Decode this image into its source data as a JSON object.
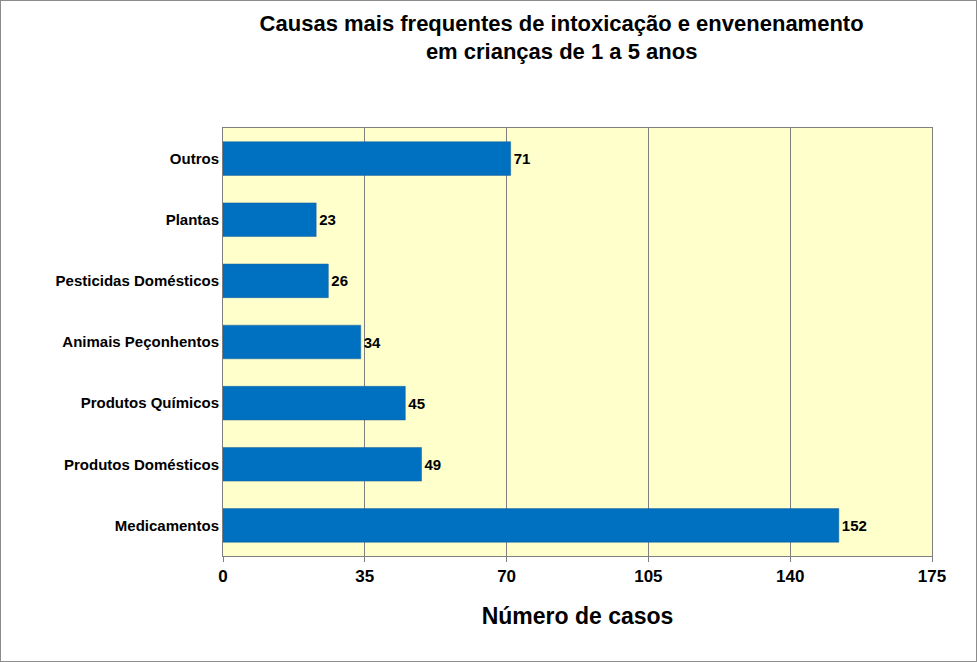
{
  "chart_data": {
    "type": "bar",
    "orientation": "horizontal",
    "title": [
      "Causas mais frequentes de intoxicação e envenenamento",
      "em crianças de 1 a 5 anos"
    ],
    "x_label": "Número de casos",
    "categories": [
      "Outros",
      "Plantas",
      "Pesticidas Domésticos",
      "Animais Peçonhentos",
      "Produtos Químicos",
      "Produtos Domésticos",
      "Medicamentos"
    ],
    "values": [
      71,
      23,
      26,
      34,
      45,
      49,
      152
    ],
    "color": "#0070c0",
    "xlim": [
      0,
      175
    ],
    "xticks": [
      0,
      35,
      70,
      105,
      140,
      175
    ],
    "grid": true,
    "data_labels": true
  }
}
